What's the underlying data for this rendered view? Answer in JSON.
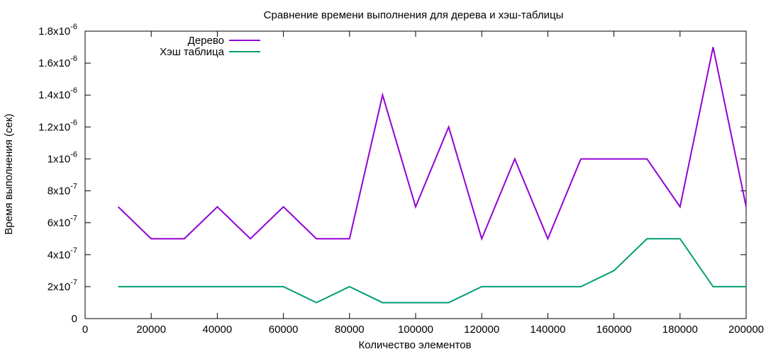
{
  "chart_data": {
    "type": "line",
    "title": "Сравнение времени выполнения для дерева и хэш-таблицы",
    "xlabel": "Количество элементов",
    "ylabel": "Время выполнения (сек)",
    "xlim": [
      0,
      200000
    ],
    "ylim": [
      0,
      1.8e-06
    ],
    "x_ticks": [
      0,
      20000,
      40000,
      60000,
      80000,
      100000,
      120000,
      140000,
      160000,
      180000,
      200000
    ],
    "y_ticks": [
      {
        "value": 0,
        "mant": "0",
        "exp": ""
      },
      {
        "value": 2e-07,
        "mant": "2x10",
        "exp": "-7"
      },
      {
        "value": 4e-07,
        "mant": "4x10",
        "exp": "-7"
      },
      {
        "value": 6e-07,
        "mant": "6x10",
        "exp": "-7"
      },
      {
        "value": 8e-07,
        "mant": "8x10",
        "exp": "-7"
      },
      {
        "value": 1e-06,
        "mant": "1x10",
        "exp": "-6"
      },
      {
        "value": 1.2e-06,
        "mant": "1.2x10",
        "exp": "-6"
      },
      {
        "value": 1.4e-06,
        "mant": "1.4x10",
        "exp": "-6"
      },
      {
        "value": 1.6e-06,
        "mant": "1.6x10",
        "exp": "-6"
      },
      {
        "value": 1.8e-06,
        "mant": "1.8x10",
        "exp": "-6"
      }
    ],
    "x": [
      10000,
      20000,
      30000,
      40000,
      50000,
      60000,
      70000,
      80000,
      90000,
      100000,
      110000,
      120000,
      130000,
      140000,
      150000,
      160000,
      170000,
      180000,
      190000,
      200000
    ],
    "series": [
      {
        "name": "Дерево",
        "color": "#9400d3",
        "values": [
          7e-07,
          5e-07,
          5e-07,
          7e-07,
          5e-07,
          7e-07,
          5e-07,
          5e-07,
          1.4e-06,
          7e-07,
          1.2e-06,
          5e-07,
          1e-06,
          5e-07,
          1e-06,
          1e-06,
          1e-06,
          7e-07,
          1.7e-06,
          7e-07
        ]
      },
      {
        "name": "Хэш таблица",
        "color": "#009e73",
        "values": [
          2e-07,
          2e-07,
          2e-07,
          2e-07,
          2e-07,
          2e-07,
          1e-07,
          2e-07,
          1e-07,
          1e-07,
          1e-07,
          2e-07,
          2e-07,
          2e-07,
          2e-07,
          3e-07,
          5e-07,
          5e-07,
          2e-07,
          2e-07
        ]
      }
    ],
    "legend_position": "top-left",
    "grid": false
  }
}
